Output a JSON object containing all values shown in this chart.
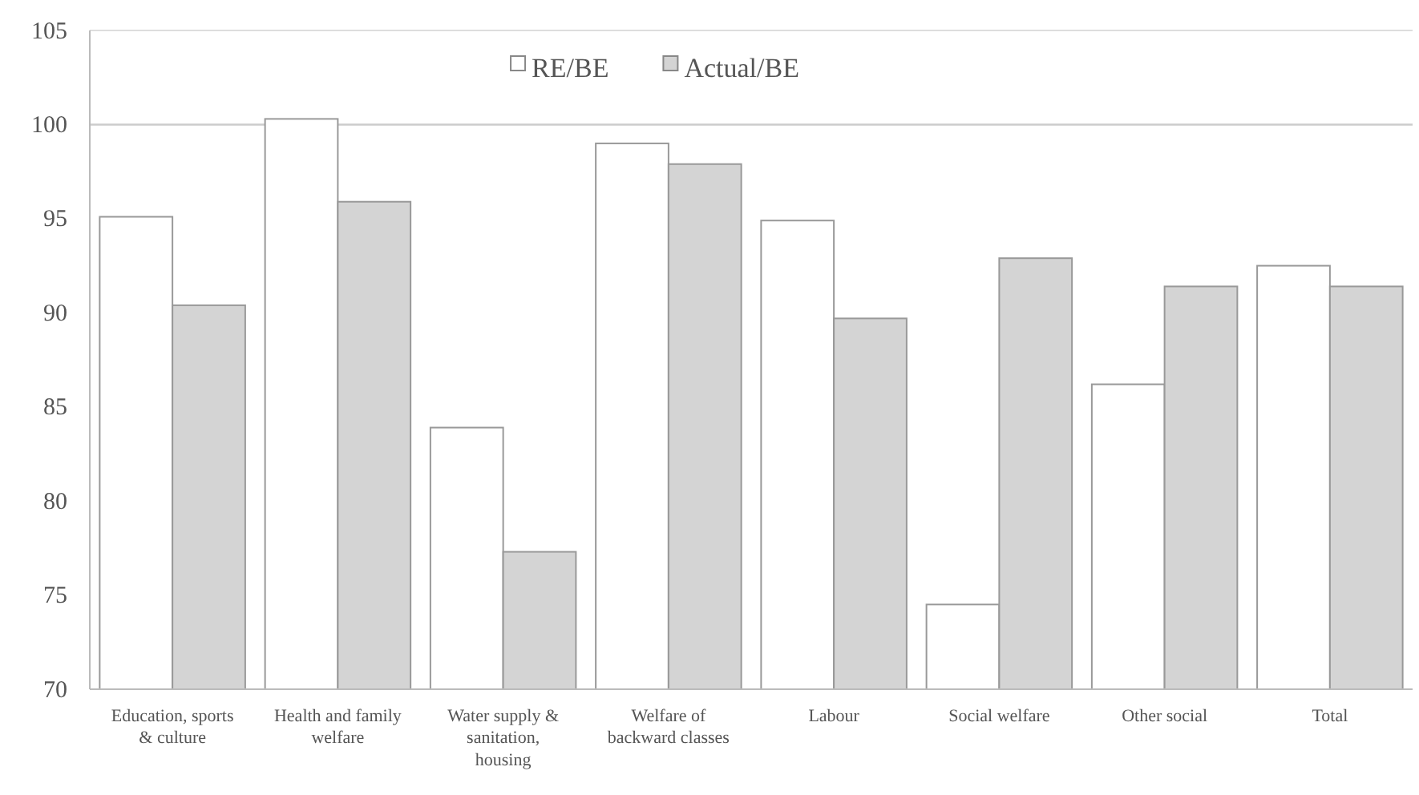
{
  "chart_data": {
    "type": "bar",
    "categories": [
      "Education, sports & culture",
      "Health and family welfare",
      "Water supply & sanitation, housing",
      "Welfare of backward classes",
      "Labour",
      "Social welfare",
      "Other social",
      "Total"
    ],
    "series": [
      {
        "name": "RE/BE",
        "color": "#ffffff",
        "values": [
          95.1,
          100.3,
          83.9,
          99.0,
          94.9,
          74.5,
          86.2,
          92.5
        ]
      },
      {
        "name": "Actual/BE",
        "color": "#d4d4d4",
        "values": [
          90.4,
          95.9,
          77.3,
          97.9,
          89.7,
          92.9,
          91.4,
          91.4
        ]
      }
    ],
    "ylim": [
      70,
      105
    ],
    "yticks": [
      70,
      75,
      80,
      85,
      90,
      95,
      100,
      105
    ],
    "ref_lines": [
      {
        "axis": "y",
        "value": 100
      }
    ],
    "legend": "top"
  }
}
